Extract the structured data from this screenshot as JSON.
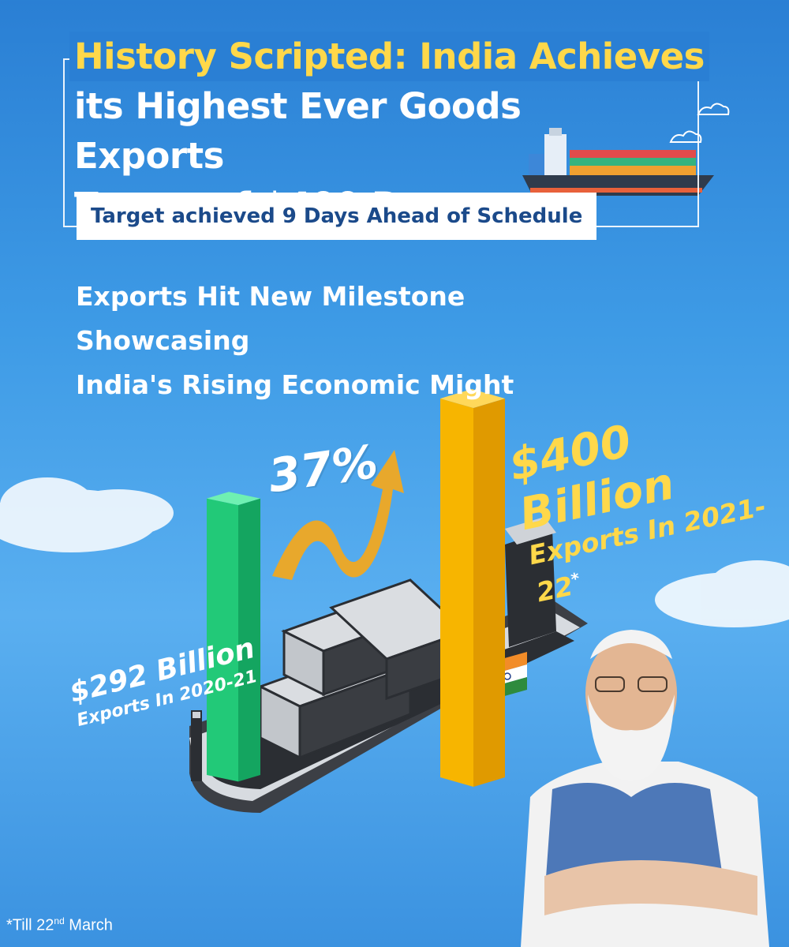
{
  "headline": {
    "line1": "History Scripted: India Achieves",
    "line2": "its Highest Ever Goods Exports",
    "line3": "Target of $400 Bn"
  },
  "target_note": "Target achieved 9 Days Ahead of Schedule",
  "subhead": {
    "line1": "Exports Hit New Milestone Showcasing",
    "line2": "India's Rising Economic Might"
  },
  "bars": {
    "current": {
      "value": "$400 Billion",
      "caption": "Exports In 2021-22",
      "marker": "*",
      "amount": 400,
      "color": "#f7b500"
    },
    "previous": {
      "value": "$292 Billion",
      "caption": "Exports In 2020-21",
      "amount": 292,
      "color": "#2fd883"
    }
  },
  "growth": "37%",
  "footnote": {
    "prefix": "*Till 22",
    "ordinal": "nd",
    "suffix": " March"
  },
  "colors": {
    "accent_yellow": "#ffd84a",
    "sky_blue": "#2a7fd4",
    "title_navy": "#1b4a8a"
  },
  "icons": [
    "cargo-ship-icon",
    "cloud-icon",
    "growth-arrow-icon",
    "india-flag-icon",
    "person-photo"
  ]
}
